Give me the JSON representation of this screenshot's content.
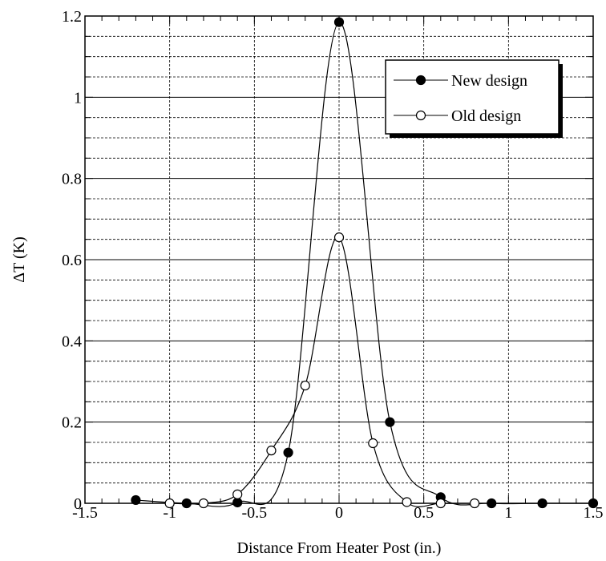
{
  "chart_data": {
    "type": "line",
    "xlabel": "Distance From Heater Post (in.)",
    "ylabel": "ΔT (K)",
    "xlim": [
      -1.5,
      1.5
    ],
    "ylim": [
      0,
      1.2
    ],
    "xticks": [
      -1.5,
      -1,
      -0.5,
      0,
      0.5,
      1,
      1.5
    ],
    "xtick_labels": [
      "-1.5",
      "-1",
      "-0.5",
      "0",
      "0.5",
      "1",
      "1.5"
    ],
    "yticks": [
      0,
      0.2,
      0.4,
      0.6,
      0.8,
      1,
      1.2
    ],
    "ytick_labels": [
      "0",
      "0.2",
      "0.4",
      "0.6",
      "0.8",
      "1",
      "1.2"
    ],
    "grid": true,
    "legend_position": "top-right",
    "series": [
      {
        "name": "New design",
        "marker": "filled-circle",
        "color": "#000000",
        "x": [
          -1.2,
          -0.9,
          -0.6,
          -0.3,
          0,
          0.3,
          0.6,
          0.9,
          1.2,
          1.5
        ],
        "y": [
          0.008,
          0.0,
          0.002,
          0.125,
          1.185,
          0.2,
          0.015,
          0.0,
          0.0,
          0.0
        ]
      },
      {
        "name": "Old design",
        "marker": "open-circle",
        "color": "#000000",
        "x": [
          -1.0,
          -0.8,
          -0.6,
          -0.4,
          -0.2,
          0,
          0.2,
          0.4,
          0.6,
          0.8
        ],
        "y": [
          0.0,
          0.0,
          0.022,
          0.13,
          0.29,
          0.655,
          0.148,
          0.003,
          0.0,
          0.0
        ]
      }
    ]
  }
}
